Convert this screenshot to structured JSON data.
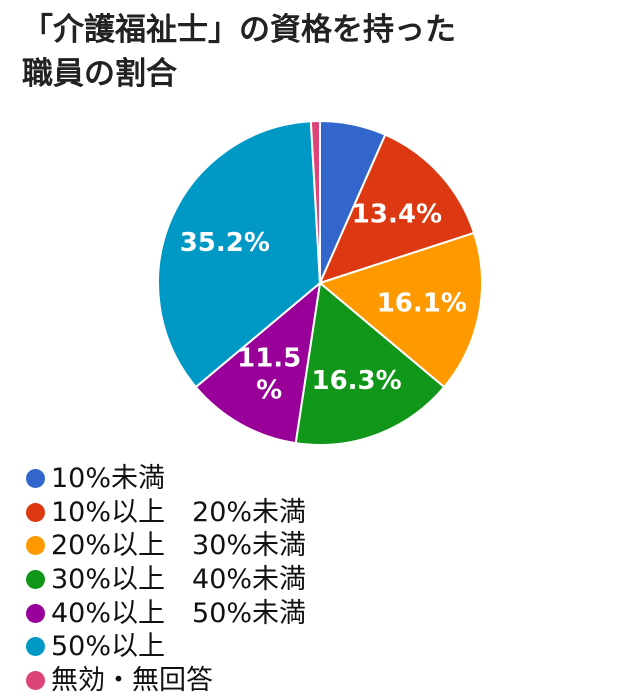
{
  "title_lines": [
    "「介護福祉士」の資格を持った",
    "職員の割合"
  ],
  "chart_data": {
    "type": "pie",
    "title": "「介護福祉士」の資格を持った職員の割合",
    "unit": "%",
    "start_angle_deg": 0,
    "direction": "clockwise",
    "legend_position": "bottom",
    "slices": [
      {
        "label": "10%未満",
        "value": 6.6,
        "color": "#3366cc",
        "data_label": ""
      },
      {
        "label": "10%以上　20%未満",
        "value": 13.4,
        "color": "#dc3912",
        "data_label": "13.4%"
      },
      {
        "label": "20%以上　30%未満",
        "value": 16.1,
        "color": "#ff9900",
        "data_label": "16.1%"
      },
      {
        "label": "30%以上　40%未満",
        "value": 16.3,
        "color": "#109618",
        "data_label": "16.3%"
      },
      {
        "label": "40%以上　50%未満",
        "value": 11.5,
        "color": "#990099",
        "data_label": "11.5\n%"
      },
      {
        "label": "50%以上",
        "value": 35.2,
        "color": "#0099c6",
        "data_label": "35.2%"
      },
      {
        "label": "無効・無回答",
        "value": 0.9,
        "color": "#dd4477",
        "data_label": ""
      }
    ]
  }
}
